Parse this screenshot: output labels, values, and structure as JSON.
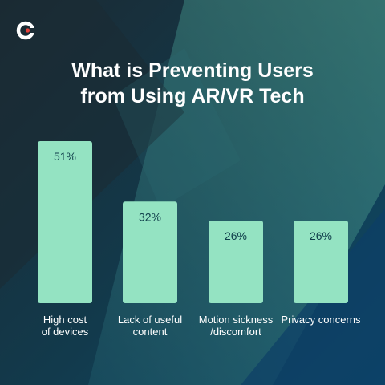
{
  "brand": {
    "logo_icon": "c-logo-icon",
    "accent_color": "#e8413a"
  },
  "title": {
    "line1": "What is Preventing Users",
    "line2": "from Using AR/VR Tech"
  },
  "colors": {
    "bar": "#94e3c2",
    "bar_text": "#0f3d4a",
    "background": "#0f3a52"
  },
  "chart_data": {
    "type": "bar",
    "title": "What is Preventing Users from Using AR/VR Tech",
    "categories": [
      "High cost\nof devices",
      "Lack of useful\ncontent",
      "Motion sickness\n/discomfort",
      "Privacy concerns"
    ],
    "values": [
      51,
      32,
      26,
      26
    ],
    "data_labels": [
      "51%",
      "32%",
      "26%",
      "26%"
    ],
    "unit": "%",
    "ylim": [
      0,
      51
    ],
    "grid": false,
    "legend": "none"
  }
}
